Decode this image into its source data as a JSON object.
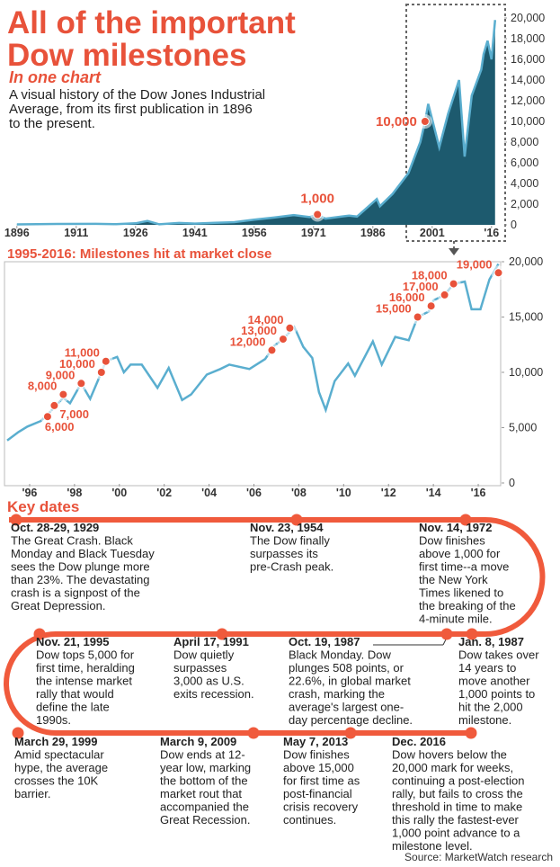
{
  "header": {
    "title_lines": [
      "All of the important",
      "Dow milestones"
    ],
    "subtitle": "In one chart",
    "description": [
      "A visual history of the Dow Jones Industrial",
      "Average, from its first publication in 1896",
      "to the present."
    ]
  },
  "chart_data": [
    {
      "type": "area",
      "x": [
        1896,
        1906,
        1916,
        1921,
        1926,
        1929,
        1932,
        1937,
        1941,
        1946,
        1951,
        1956,
        1961,
        1966,
        1970,
        1972,
        1974,
        1980,
        1982,
        1987,
        1987.8,
        1991,
        1995,
        1998,
        1999.2,
        2000,
        2002.8,
        2005,
        2007.8,
        2009.2,
        2011,
        2013.4,
        2014,
        2015,
        2016,
        2016.9
      ],
      "values": [
        40,
        90,
        95,
        70,
        150,
        380,
        50,
        180,
        120,
        190,
        260,
        500,
        700,
        950,
        750,
        1000,
        600,
        900,
        800,
        2500,
        1800,
        3000,
        5000,
        8000,
        10000,
        11700,
        7500,
        10700,
        14000,
        6600,
        12500,
        15000,
        16500,
        17800,
        16000,
        19800
      ],
      "color": "#1d5a6e",
      "line_color": "#5aaecf",
      "xlim": [
        1894,
        2019
      ],
      "xticks": [
        1896,
        1911,
        1926,
        1941,
        1956,
        1971,
        1986,
        2001,
        {
          "value": 2016,
          "label": "'16"
        }
      ],
      "ylim": [
        0,
        20000
      ],
      "yticks": [
        0,
        {
          "value": 2000,
          "label": "2,000"
        },
        {
          "value": 4000,
          "label": "4,000"
        },
        {
          "value": 6000,
          "label": "6,000"
        },
        {
          "value": 8000,
          "label": "8,000"
        },
        {
          "value": 10000,
          "label": "10,000"
        },
        {
          "value": 12000,
          "label": "12,000"
        },
        {
          "value": 14000,
          "label": "14,000"
        },
        {
          "value": 16000,
          "label": "16,000"
        },
        {
          "value": 18000,
          "label": "18,000"
        },
        {
          "value": 20000,
          "label": "20,000"
        }
      ],
      "milestones": {
        "x": [
          1972,
          1999.2
        ],
        "values": [
          1000,
          10000
        ],
        "value_labels": [
          "1,000",
          "10,000"
        ],
        "color": "#e8523a"
      }
    },
    {
      "type": "line",
      "title": "1995-2016: Milestones hit at market close",
      "x": [
        1995.0,
        1995.5,
        1995.9,
        1996.5,
        1996.9,
        1997.5,
        1997.8,
        1998.3,
        1998.7,
        1999.2,
        1999.4,
        1999.9,
        2000.2,
        2000.5,
        2001.0,
        2001.7,
        2002.2,
        2002.8,
        2003.2,
        2003.9,
        2004.5,
        2004.9,
        2005.8,
        2006.5,
        2006.9,
        2007.3,
        2007.8,
        2008.2,
        2008.6,
        2008.9,
        2009.2,
        2009.6,
        2010.2,
        2010.5,
        2011.3,
        2011.7,
        2012.3,
        2012.9,
        2013.3,
        2013.8,
        2014.0,
        2014.5,
        2014.9,
        2015.4,
        2015.7,
        2016.1,
        2016.5,
        2016.9
      ],
      "values": [
        3840,
        4600,
        5100,
        5600,
        6400,
        7700,
        7200,
        9000,
        7600,
        10000,
        11000,
        11400,
        10000,
        10700,
        10700,
        8600,
        10400,
        7500,
        8000,
        9800,
        10300,
        10700,
        10300,
        11200,
        12400,
        13000,
        14100,
        12300,
        11300,
        8200,
        6600,
        9200,
        10800,
        9700,
        12800,
        10700,
        13200,
        12900,
        15000,
        15500,
        16500,
        17000,
        18000,
        18200,
        15700,
        15700,
        18400,
        19800
      ],
      "color": "#5aaecf",
      "xlim": [
        1995,
        2017
      ],
      "xticks": [
        {
          "value": 1996,
          "label": "'96"
        },
        {
          "value": 1998,
          "label": "'98"
        },
        {
          "value": 2000,
          "label": "'00"
        },
        {
          "value": 2002,
          "label": "'02"
        },
        {
          "value": 2004,
          "label": "'04"
        },
        {
          "value": 2006,
          "label": "'06"
        },
        {
          "value": 2008,
          "label": "'08"
        },
        {
          "value": 2010,
          "label": "'10"
        },
        {
          "value": 2012,
          "label": "'12"
        },
        {
          "value": 2014,
          "label": "'14"
        },
        {
          "value": 2016,
          "label": "'16"
        }
      ],
      "ylim": [
        0,
        20000
      ],
      "yticks": [
        0,
        {
          "value": 5000,
          "label": "5,000"
        },
        {
          "value": 10000,
          "label": "10,000"
        },
        {
          "value": 15000,
          "label": "15,000"
        },
        {
          "value": 20000,
          "label": "20,000"
        }
      ],
      "milestones": {
        "x": [
          1996.8,
          1997.1,
          1997.5,
          1998.3,
          1999.2,
          1999.4,
          2006.8,
          2007.3,
          2007.6,
          2013.3,
          2013.9,
          2014.5,
          2014.9,
          2016.9
        ],
        "values": [
          6000,
          7000,
          8000,
          9000,
          10000,
          11000,
          12000,
          13000,
          14000,
          15000,
          16000,
          17000,
          18000,
          19000
        ],
        "value_labels": [
          "6,000",
          "7,000",
          "8,000",
          "9,000",
          "10,000",
          "11,000",
          "12,000",
          "13,000",
          "14,000",
          "15,000",
          "16,000",
          "17,000",
          "18,000",
          "19,000"
        ],
        "color": "#e8523a"
      }
    }
  ],
  "key_dates": {
    "title": "Key dates",
    "events": [
      {
        "date": "Oct. 28-29, 1929",
        "lines": [
          "The Great Crash. Black",
          "Monday and Black Tuesday",
          "sees the Dow plunge more",
          "than 23%. The devastating",
          "crash is a signpost of the",
          "Great Depression."
        ]
      },
      {
        "date": "Nov. 23, 1954",
        "lines": [
          "The Dow finally",
          "surpasses its",
          "pre-Crash peak."
        ]
      },
      {
        "date": "Nov. 14, 1972",
        "lines": [
          "Dow finishes",
          "above 1,000 for",
          "first time--a move",
          "the New York",
          "Times likened to",
          "the breaking of the",
          "4-minute mile."
        ]
      },
      {
        "date": "Nov. 21, 1995",
        "lines": [
          "Dow tops 5,000 for",
          "first time, heralding",
          "the intense market",
          "rally that would",
          "define the late",
          "1990s."
        ]
      },
      {
        "date": "April 17, 1991",
        "lines": [
          "Dow quietly",
          "surpasses",
          "3,000 as U.S.",
          "exits recession."
        ]
      },
      {
        "date": "Oct. 19, 1987",
        "lines": [
          "Black Monday. Dow",
          "plunges 508 points, or",
          "22.6%, in global market",
          "crash, marking the",
          "average's largest one-",
          "day percentage decline."
        ]
      },
      {
        "date": "Jan. 8, 1987",
        "lines": [
          "Dow takes over",
          "14 years to",
          "move another",
          "1,000 points to",
          "hit the 2,000",
          "milestone."
        ]
      },
      {
        "date": "March 29, 1999",
        "lines": [
          "Amid spectacular",
          "hype, the average",
          "crosses the 10K",
          "barrier."
        ]
      },
      {
        "date": "March 9, 2009",
        "lines": [
          "Dow ends at 12-",
          "year low, marking",
          "the bottom of the",
          "market rout that",
          "accompanied the",
          "Great Recession."
        ]
      },
      {
        "date": "May 7, 2013",
        "lines": [
          "Dow finishes",
          "above 15,000",
          "for first time as",
          "post-financial",
          "crisis recovery",
          "continues."
        ]
      },
      {
        "date": "Dec. 2016",
        "lines": [
          "Dow hovers below the",
          "20,000 mark for weeks,",
          "continuing a post-election",
          "rally, but fails to cross the",
          "threshold in time to make",
          "this rally the fastest-ever",
          "1,000 point advance to a",
          "milestone level."
        ]
      }
    ]
  },
  "source": "Source: MarketWatch research"
}
